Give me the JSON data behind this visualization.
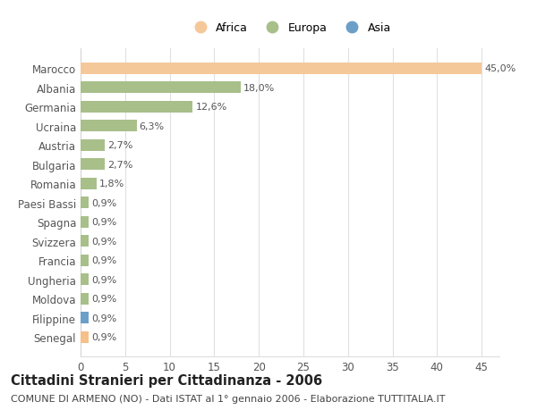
{
  "title": "Cittadini Stranieri per Cittadinanza - 2006",
  "subtitle": "COMUNE DI ARMENO (NO) - Dati ISTAT al 1° gennaio 2006 - Elaborazione TUTTITALIA.IT",
  "categories": [
    "Senegal",
    "Filippine",
    "Moldova",
    "Ungheria",
    "Francia",
    "Svizzera",
    "Spagna",
    "Paesi Bassi",
    "Romania",
    "Bulgaria",
    "Austria",
    "Ucraina",
    "Germania",
    "Albania",
    "Marocco"
  ],
  "values": [
    0.9,
    0.9,
    0.9,
    0.9,
    0.9,
    0.9,
    0.9,
    0.9,
    1.8,
    2.7,
    2.7,
    6.3,
    12.6,
    18.0,
    45.0
  ],
  "labels": [
    "0,9%",
    "0,9%",
    "0,9%",
    "0,9%",
    "0,9%",
    "0,9%",
    "0,9%",
    "0,9%",
    "1,8%",
    "2,7%",
    "2,7%",
    "6,3%",
    "12,6%",
    "18,0%",
    "45,0%"
  ],
  "colors": [
    "#f5c08a",
    "#6b9fc8",
    "#a8bf8a",
    "#a8bf8a",
    "#a8bf8a",
    "#a8bf8a",
    "#a8bf8a",
    "#a8bf8a",
    "#a8bf8a",
    "#a8bf8a",
    "#a8bf8a",
    "#a8bf8a",
    "#a8bf8a",
    "#a8bf8a",
    "#f5c89a"
  ],
  "legend": [
    {
      "label": "Africa",
      "color": "#f5c89a"
    },
    {
      "label": "Europa",
      "color": "#a8bf8a"
    },
    {
      "label": "Asia",
      "color": "#6b9fc8"
    }
  ],
  "xlim": [
    0,
    47
  ],
  "xticks": [
    0,
    5,
    10,
    15,
    20,
    25,
    30,
    35,
    40,
    45
  ],
  "fig_background": "#ffffff",
  "plot_background": "#ffffff",
  "bar_height": 0.6,
  "grid_color": "#e0e0e0",
  "title_fontsize": 10.5,
  "subtitle_fontsize": 8,
  "label_fontsize": 8,
  "tick_fontsize": 8.5,
  "legend_fontsize": 9
}
